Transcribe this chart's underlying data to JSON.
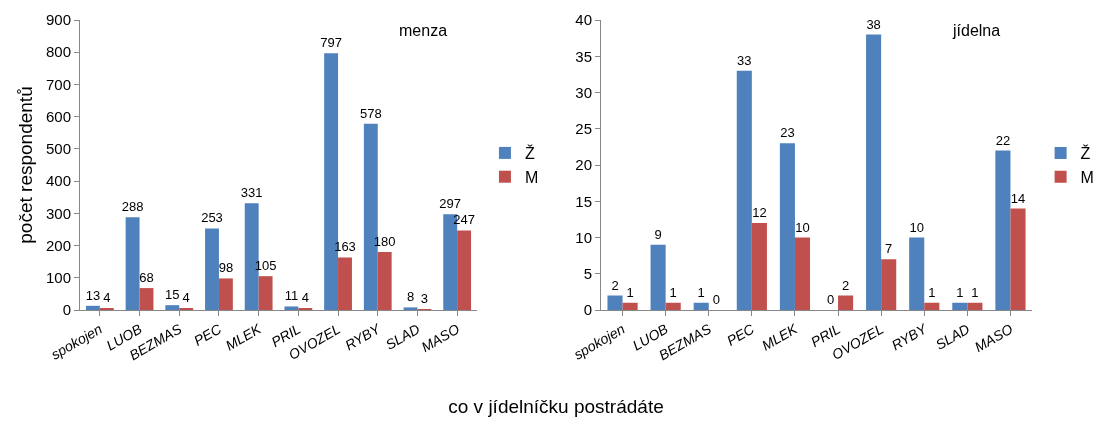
{
  "chart_data": [
    {
      "type": "bar",
      "title": "menza",
      "ylabel": "počet respondentů",
      "xlabel": "co v jídelníčku postrádáte",
      "categories": [
        "spokojen",
        "LUOB",
        "BEZMAS",
        "PEC",
        "MLEK",
        "PRIL",
        "OVOZEL",
        "RYBY",
        "SLAD",
        "MASO"
      ],
      "series": [
        {
          "name": "Ž",
          "color": "#4f81bd",
          "values": [
            13,
            288,
            15,
            253,
            331,
            11,
            797,
            578,
            8,
            297
          ]
        },
        {
          "name": "M",
          "color": "#c0504d",
          "values": [
            4,
            68,
            4,
            98,
            105,
            4,
            163,
            180,
            3,
            247
          ]
        }
      ],
      "ylim": [
        0,
        900
      ],
      "yticks": [
        0,
        100,
        200,
        300,
        400,
        500,
        600,
        700,
        800,
        900
      ],
      "grid": false,
      "legend": "right",
      "data_labels": true
    },
    {
      "type": "bar",
      "title": "jídelna",
      "categories": [
        "spokojen",
        "LUOB",
        "BEZMAS",
        "PEC",
        "MLEK",
        "PRIL",
        "OVOZEL",
        "RYBY",
        "SLAD",
        "MASO"
      ],
      "series": [
        {
          "name": "Ž",
          "color": "#4f81bd",
          "values": [
            2,
            9,
            1,
            33,
            23,
            0,
            38,
            10,
            1,
            22
          ]
        },
        {
          "name": "M",
          "color": "#c0504d",
          "values": [
            1,
            1,
            0,
            12,
            10,
            2,
            7,
            1,
            1,
            14
          ]
        }
      ],
      "ylim": [
        0,
        40
      ],
      "yticks": [
        0,
        5,
        10,
        15,
        20,
        25,
        30,
        35,
        40
      ],
      "grid": false,
      "legend": "right",
      "data_labels": true
    }
  ]
}
